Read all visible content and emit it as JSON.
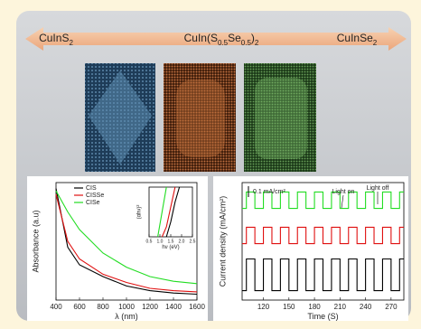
{
  "header": {
    "labels": [
      {
        "parts": [
          "CuInS",
          "2"
        ]
      },
      {
        "parts": [
          "CuIn(S",
          "0.5",
          "Se",
          "0.5",
          ")",
          "2"
        ]
      },
      {
        "parts": [
          "CuInSe",
          "2"
        ]
      }
    ]
  },
  "chart_data": [
    {
      "type": "line",
      "xlabel": "λ (nm)",
      "ylabel": "Absorbance (a.u)",
      "x": [
        400,
        500,
        600,
        800,
        1000,
        1200,
        1400,
        1600
      ],
      "series": [
        {
          "name": "CIS",
          "color": "#000000",
          "values": [
            0.95,
            0.45,
            0.3,
            0.2,
            0.12,
            0.08,
            0.06,
            0.05
          ]
        },
        {
          "name": "CISSe",
          "color": "#e01010",
          "values": [
            0.9,
            0.5,
            0.35,
            0.22,
            0.15,
            0.1,
            0.08,
            0.07
          ]
        },
        {
          "name": "CISe",
          "color": "#22dd22",
          "values": [
            0.93,
            0.75,
            0.6,
            0.4,
            0.28,
            0.2,
            0.16,
            0.14
          ]
        }
      ],
      "xlim": [
        400,
        1600
      ],
      "xticks": [
        400,
        600,
        800,
        1000,
        1200,
        1400,
        1600
      ],
      "ylim": [
        0,
        1
      ],
      "legend": "top-left"
    },
    {
      "type": "line",
      "xlabel": "hν (eV)",
      "ylabel": "(αhν)²",
      "x": [
        0.9,
        1.1,
        1.3,
        1.5,
        1.7,
        1.9
      ],
      "series": [
        {
          "color": "#22dd22",
          "values": [
            0,
            0.5,
            1,
            null,
            null,
            null
          ]
        },
        {
          "color": "#e01010",
          "values": [
            null,
            0,
            0.2,
            0.6,
            1,
            null
          ]
        },
        {
          "color": "#000000",
          "values": [
            null,
            null,
            0,
            0.3,
            0.7,
            1
          ]
        }
      ],
      "xlim": [
        0.5,
        2.5
      ],
      "xticks": [
        0.5,
        {
          "value": 1,
          "label": "1.0"
        },
        1.5,
        {
          "value": 2,
          "label": "2.0"
        },
        2.5
      ],
      "ylim": [
        0,
        1
      ]
    },
    {
      "type": "line",
      "xlabel": "Time (S)",
      "ylabel": "Current density (mA/cm²)",
      "annotations": [
        "0.1 mA/cm²",
        "Light on",
        "Light off"
      ],
      "x": [
        95,
        100,
        100,
        110,
        110,
        120,
        120,
        130,
        130,
        140,
        140,
        150,
        150,
        160,
        160,
        170,
        170,
        180,
        180,
        190,
        190,
        200,
        200,
        210,
        210,
        220,
        220,
        230,
        230,
        240,
        240,
        250,
        250,
        260,
        260,
        270,
        270,
        280,
        280,
        285
      ],
      "series": [
        {
          "color": "#22dd22",
          "values": [
            0.78,
            0.78,
            0.92,
            0.92,
            0.78,
            0.78,
            0.92,
            0.92,
            0.78,
            0.78,
            0.92,
            0.92,
            0.78,
            0.78,
            0.92,
            0.92,
            0.78,
            0.78,
            0.92,
            0.92,
            0.78,
            0.78,
            0.92,
            0.92,
            0.78,
            0.78,
            0.92,
            0.92,
            0.78,
            0.78,
            0.92,
            0.92,
            0.78,
            0.78,
            0.92,
            0.92,
            0.78,
            0.78,
            0.92,
            0.92
          ]
        },
        {
          "color": "#e01010",
          "values": [
            0.48,
            0.48,
            0.62,
            0.62,
            0.48,
            0.48,
            0.62,
            0.62,
            0.48,
            0.48,
            0.62,
            0.62,
            0.48,
            0.48,
            0.62,
            0.62,
            0.48,
            0.48,
            0.62,
            0.62,
            0.48,
            0.48,
            0.62,
            0.62,
            0.48,
            0.48,
            0.62,
            0.62,
            0.48,
            0.48,
            0.62,
            0.62,
            0.48,
            0.48,
            0.62,
            0.62,
            0.48,
            0.48,
            0.62,
            0.62
          ]
        },
        {
          "color": "#000000",
          "values": [
            0.08,
            0.08,
            0.35,
            0.35,
            0.08,
            0.08,
            0.35,
            0.35,
            0.08,
            0.08,
            0.35,
            0.35,
            0.08,
            0.08,
            0.35,
            0.35,
            0.08,
            0.08,
            0.35,
            0.35,
            0.08,
            0.08,
            0.35,
            0.35,
            0.08,
            0.08,
            0.35,
            0.35,
            0.08,
            0.08,
            0.35,
            0.35,
            0.08,
            0.08,
            0.35,
            0.35,
            0.08,
            0.08,
            0.35,
            0.35
          ]
        }
      ],
      "xlim": [
        95,
        285
      ],
      "xticks": [
        120,
        150,
        180,
        210,
        240,
        270
      ],
      "ylim": [
        0,
        1
      ]
    }
  ]
}
